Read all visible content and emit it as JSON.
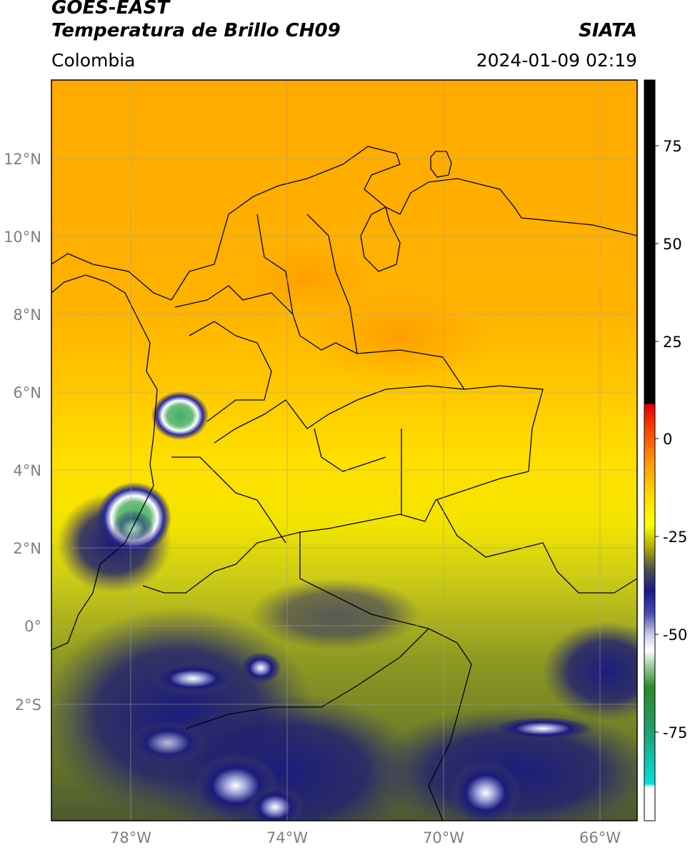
{
  "header": {
    "satellite": "GOES-EAST",
    "product": "Temperatura de Brillo CH09",
    "org": "SIATA",
    "region": "Colombia",
    "timestamp": "2024-01-09 02:19"
  },
  "map": {
    "lat_labels": [
      "12°N",
      "10°N",
      "8°N",
      "6°N",
      "4°N",
      "2°N",
      "0°",
      "2°S"
    ],
    "lon_labels": [
      "78°W",
      "74°W",
      "70°W",
      "66°W"
    ],
    "colorbar": {
      "ticks": [
        "75",
        "50",
        "25",
        "0",
        "-25",
        "-50",
        "-75"
      ],
      "range": [
        -90,
        90
      ],
      "colors": [
        "#000000",
        "#ff0000",
        "#ffd000",
        "#2a2a8a",
        "#ffffff",
        "#2e8b2e",
        "#00e5e5"
      ]
    },
    "colors": {
      "background_north": "#ffb000",
      "background_mid": "#ffe400",
      "background_south": "#8a9a20",
      "cold_clouds": "#1a1a7a",
      "coastline": "#000000",
      "gridline": "#9a9a9a"
    }
  }
}
